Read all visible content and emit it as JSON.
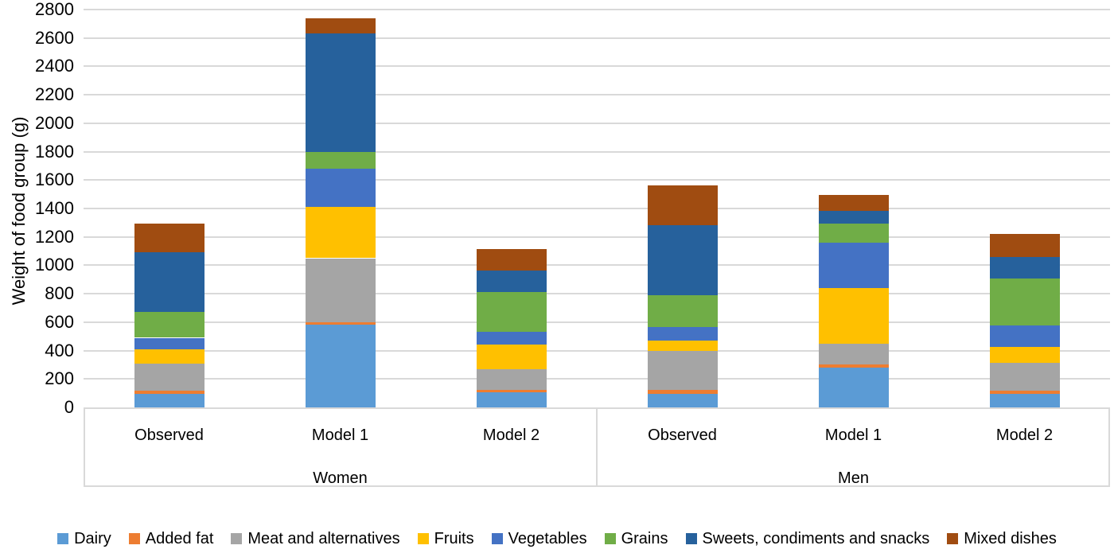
{
  "chart_data": {
    "type": "bar",
    "stacked": true,
    "title": "",
    "xlabel": "",
    "ylabel": "Weight of food group (g)",
    "ylim": [
      0,
      2800
    ],
    "ytick_step": 200,
    "grid": true,
    "legend_position": "bottom",
    "groups": [
      {
        "label": "Women",
        "categories": [
          "Observed",
          "Model 1",
          "Model 2"
        ]
      },
      {
        "label": "Men",
        "categories": [
          "Observed",
          "Model 1",
          "Model 2"
        ]
      }
    ],
    "columns": [
      "Women Observed",
      "Women Model 1",
      "Women Model 2",
      "Men Observed",
      "Men Model 1",
      "Men Model 2"
    ],
    "series": [
      {
        "name": "Dairy",
        "color": "#5B9BD5",
        "values": [
          95,
          580,
          105,
          95,
          280,
          95
        ]
      },
      {
        "name": "Added fat",
        "color": "#ED7D31",
        "values": [
          20,
          20,
          20,
          30,
          20,
          25
        ]
      },
      {
        "name": "Meat and alternatives",
        "color": "#A5A5A5",
        "values": [
          195,
          450,
          145,
          270,
          150,
          195
        ]
      },
      {
        "name": "Fruits",
        "color": "#FFC000",
        "values": [
          100,
          360,
          175,
          75,
          390,
          110
        ]
      },
      {
        "name": "Vegetables",
        "color": "#4472C4",
        "values": [
          80,
          270,
          85,
          95,
          320,
          150
        ]
      },
      {
        "name": "Grains",
        "color": "#70AD47",
        "values": [
          180,
          115,
          280,
          225,
          135,
          330
        ]
      },
      {
        "name": "Sweets, condiments and snacks",
        "color": "#26619C",
        "values": [
          420,
          835,
          155,
          490,
          90,
          155
        ]
      },
      {
        "name": "Mixed dishes",
        "color": "#A04C11",
        "values": [
          205,
          110,
          150,
          280,
          110,
          160
        ]
      }
    ],
    "totals": [
      1295,
      2740,
      1115,
      1560,
      1495,
      1220
    ]
  },
  "colors": {
    "gridline": "#D9D9D9",
    "text": "#000000",
    "background": "#FFFFFF"
  }
}
